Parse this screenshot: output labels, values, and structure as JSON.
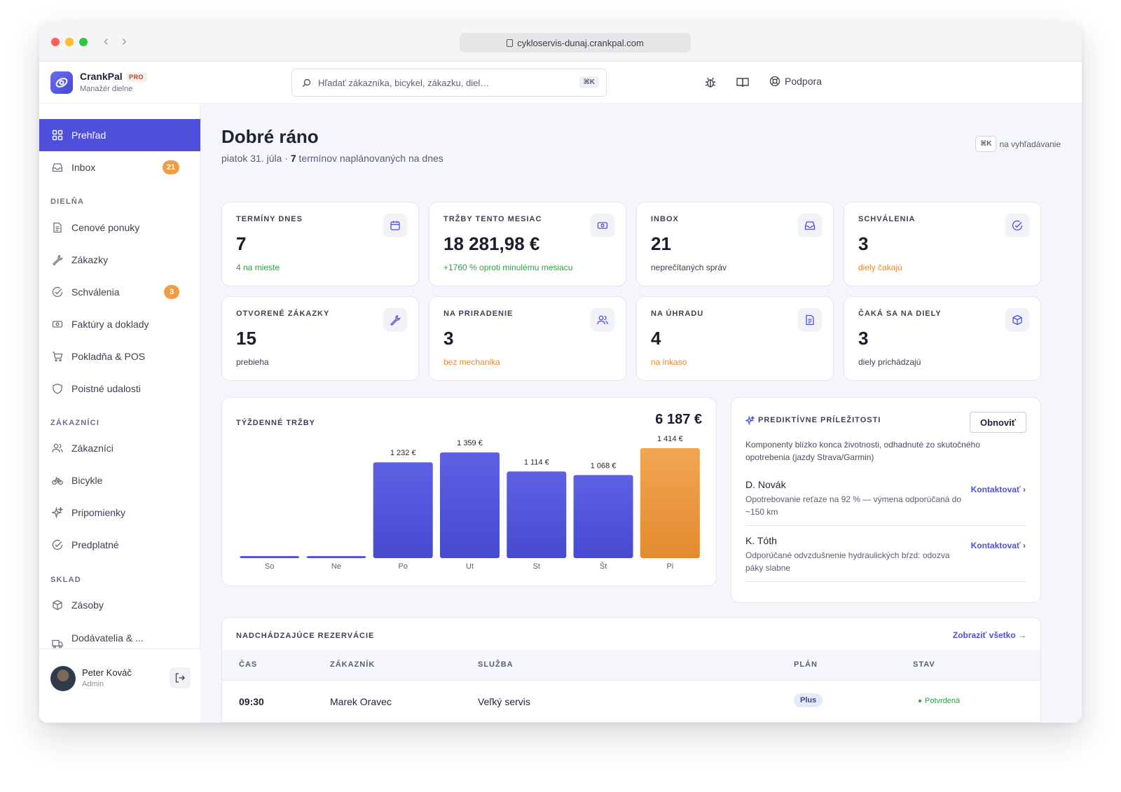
{
  "browser": {
    "url": "cykloservis-dunaj.crankpal.com"
  },
  "app": {
    "name": "CrankPal",
    "plan_badge": "PRO",
    "subtitle": "Manažér dielne"
  },
  "header": {
    "search_placeholder": "Hľadať zákazníka, bicykel, zákazku, diel…",
    "search_shortcut": "⌘K",
    "support_label": "Podpora"
  },
  "sidebar": {
    "top_items": [
      {
        "label": "Prehľad",
        "icon": "grid-icon",
        "active": true
      },
      {
        "label": "Inbox",
        "icon": "inbox-icon",
        "badge": "21"
      }
    ],
    "sections": [
      {
        "title": "DIELŇA",
        "items": [
          {
            "label": "Cenové ponuky",
            "icon": "document-icon"
          },
          {
            "label": "Zákazky",
            "icon": "wrench-icon"
          },
          {
            "label": "Schválenia",
            "icon": "check-circle-icon",
            "badge": "3"
          },
          {
            "label": "Faktúry a doklady",
            "icon": "banknote-icon"
          },
          {
            "label": "Pokladňa & POS",
            "icon": "cart-icon"
          },
          {
            "label": "Poistné udalosti",
            "icon": "shield-icon"
          }
        ]
      },
      {
        "title": "ZÁKAZNÍCI",
        "items": [
          {
            "label": "Zákazníci",
            "icon": "users-icon"
          },
          {
            "label": "Bicykle",
            "icon": "bicycle-icon"
          },
          {
            "label": "Pripomienky",
            "icon": "sparkle-icon"
          },
          {
            "label": "Predplatné",
            "icon": "check-circle-icon"
          }
        ]
      },
      {
        "title": "SKLAD",
        "items": [
          {
            "label": "Zásoby",
            "icon": "box-icon"
          },
          {
            "label": "Dodávatelia & ...",
            "icon": "truck-icon"
          }
        ]
      }
    ],
    "user": {
      "name": "Peter Kováč",
      "role": "Admin"
    }
  },
  "main": {
    "greeting": "Dobré ráno",
    "date_line_prefix": "piatok 31. júla · ",
    "date_line_count": "7",
    "date_line_suffix": " termínov naplánovaných na dnes",
    "shortcut_key": "⌘K",
    "shortcut_text": "na vyhľadávanie",
    "stats": [
      {
        "label": "TERMÍNY DNES",
        "value": "7",
        "sub": "4 na mieste",
        "tone": "green",
        "icon": "calendar-icon"
      },
      {
        "label": "TRŽBY TENTO MESIAC",
        "value": "18 281,98 €",
        "sub": "+1760 % oproti minulému mesiacu",
        "tone": "green",
        "icon": "banknote-icon"
      },
      {
        "label": "INBOX",
        "value": "21",
        "sub": "neprečítaných správ",
        "tone": "neutral",
        "icon": "inbox-icon"
      },
      {
        "label": "SCHVÁLENIA",
        "value": "3",
        "sub": "diely čakajú",
        "tone": "orange",
        "icon": "check-circle-icon"
      },
      {
        "label": "OTVORENÉ ZÁKAZKY",
        "value": "15",
        "sub": "prebieha",
        "tone": "neutral",
        "icon": "wrench-icon"
      },
      {
        "label": "NA PRIRADENIE",
        "value": "3",
        "sub": "bez mechanika",
        "tone": "orange",
        "icon": "users-icon"
      },
      {
        "label": "NA ÚHRADU",
        "value": "4",
        "sub": "na inkaso",
        "tone": "orange",
        "icon": "document-icon"
      },
      {
        "label": "ČAKÁ SA NA DIELY",
        "value": "3",
        "sub": "diely prichádzajú",
        "tone": "neutral",
        "icon": "box-icon"
      }
    ],
    "weekly": {
      "title": "TÝŽDENNÉ TRŽBY",
      "total": "6 187 €"
    },
    "predictive": {
      "title": "PREDIKTÍVNE PRÍLEŽITOSTI",
      "refresh_label": "Obnoviť",
      "description": "Komponenty blízko konca životnosti, odhadnuté zo skutočného opotrebenia (jazdy Strava/Garmin)",
      "items": [
        {
          "name": "D. Novák",
          "desc": "Opotrebovanie reťaze na 92 % — výmena odporúčaná do ~150 km",
          "action": "Kontaktovať ›"
        },
        {
          "name": "K. Tóth",
          "desc": "Odporúčané odvzdušnenie hydraulických bŕzd: odozva páky slabne",
          "action": "Kontaktovať ›"
        }
      ]
    },
    "reservations": {
      "title": "NADCHÁDZAJÚCE REZERVÁCIE",
      "view_all": "Zobraziť všetko →",
      "columns": [
        "ČAS",
        "ZÁKAZNÍK",
        "SLUŽBA",
        "PLÁN",
        "STAV"
      ],
      "rows": [
        {
          "time": "09:30",
          "customer": "Marek Oravec",
          "service": "Veľký servis",
          "plan": "Plus",
          "status": "Potvrdená"
        }
      ]
    }
  },
  "colors": {
    "accent": "#4e50dc",
    "bar": "#5254de",
    "bar_highlight": "#ef9d44",
    "positive": "#2ea043",
    "warning": "#e88a2e"
  },
  "chart_data": {
    "type": "bar",
    "title": "TÝŽDENNÉ TRŽBY",
    "categories": [
      "So",
      "Ne",
      "Po",
      "Ut",
      "St",
      "Št",
      "Pi"
    ],
    "values": [
      0,
      0,
      1232,
      1359,
      1114,
      1068,
      1414
    ],
    "value_labels": [
      "",
      "",
      "1 232 €",
      "1 359 €",
      "1 114 €",
      "1 068 €",
      "1 414 €"
    ],
    "highlight_index": 6,
    "ylim": [
      0,
      1414
    ],
    "grid": false,
    "legend": "none"
  }
}
